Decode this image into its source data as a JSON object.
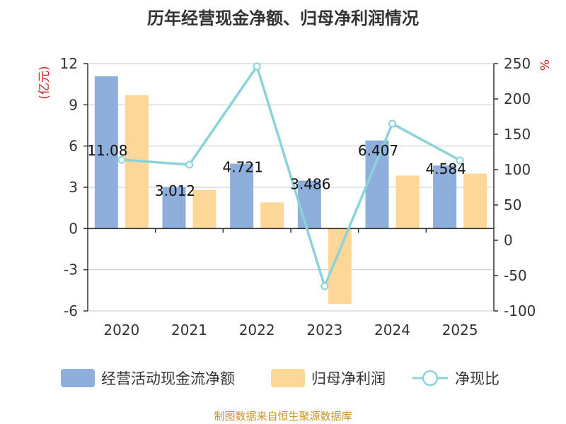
{
  "title": "历年经营现金净额、归母净利润情况",
  "source": "制图数据来自恒生聚源数据库",
  "colors": {
    "cash": "#8eaedc",
    "profit": "#fdd797",
    "ratio": "#8ad3d8",
    "unit": "#d61f1f"
  },
  "chart_data": {
    "type": "bar",
    "categories": [
      "2020",
      "2021",
      "2022",
      "2023",
      "2024",
      "2025"
    ],
    "series": [
      {
        "name": "经营活动现金流净额",
        "type": "bar",
        "axis": "left",
        "values": [
          11.08,
          3.012,
          4.721,
          3.486,
          6.407,
          4.584
        ]
      },
      {
        "name": "归母净利润",
        "type": "bar",
        "axis": "left",
        "values": [
          9.7,
          2.8,
          1.9,
          -5.5,
          3.85,
          4.0
        ]
      },
      {
        "name": "净现比",
        "type": "line",
        "axis": "right",
        "values": [
          114,
          107,
          246,
          -65,
          165,
          113
        ]
      }
    ],
    "data_labels": [
      "11.08",
      "3.012",
      "4.721",
      "3.486",
      "6.407",
      "4.584"
    ],
    "left_axis": {
      "label": "(亿元)",
      "ylim": [
        -6,
        12
      ],
      "ticks": [
        "12",
        "9",
        "6",
        "3",
        "0",
        "-3",
        "-6"
      ]
    },
    "right_axis": {
      "label": "%",
      "ylim": [
        -100,
        250
      ],
      "ticks": [
        "250",
        "200",
        "150",
        "100",
        "50",
        "0",
        "-50",
        "-100"
      ]
    },
    "grid": true,
    "legend_position": "bottom"
  }
}
